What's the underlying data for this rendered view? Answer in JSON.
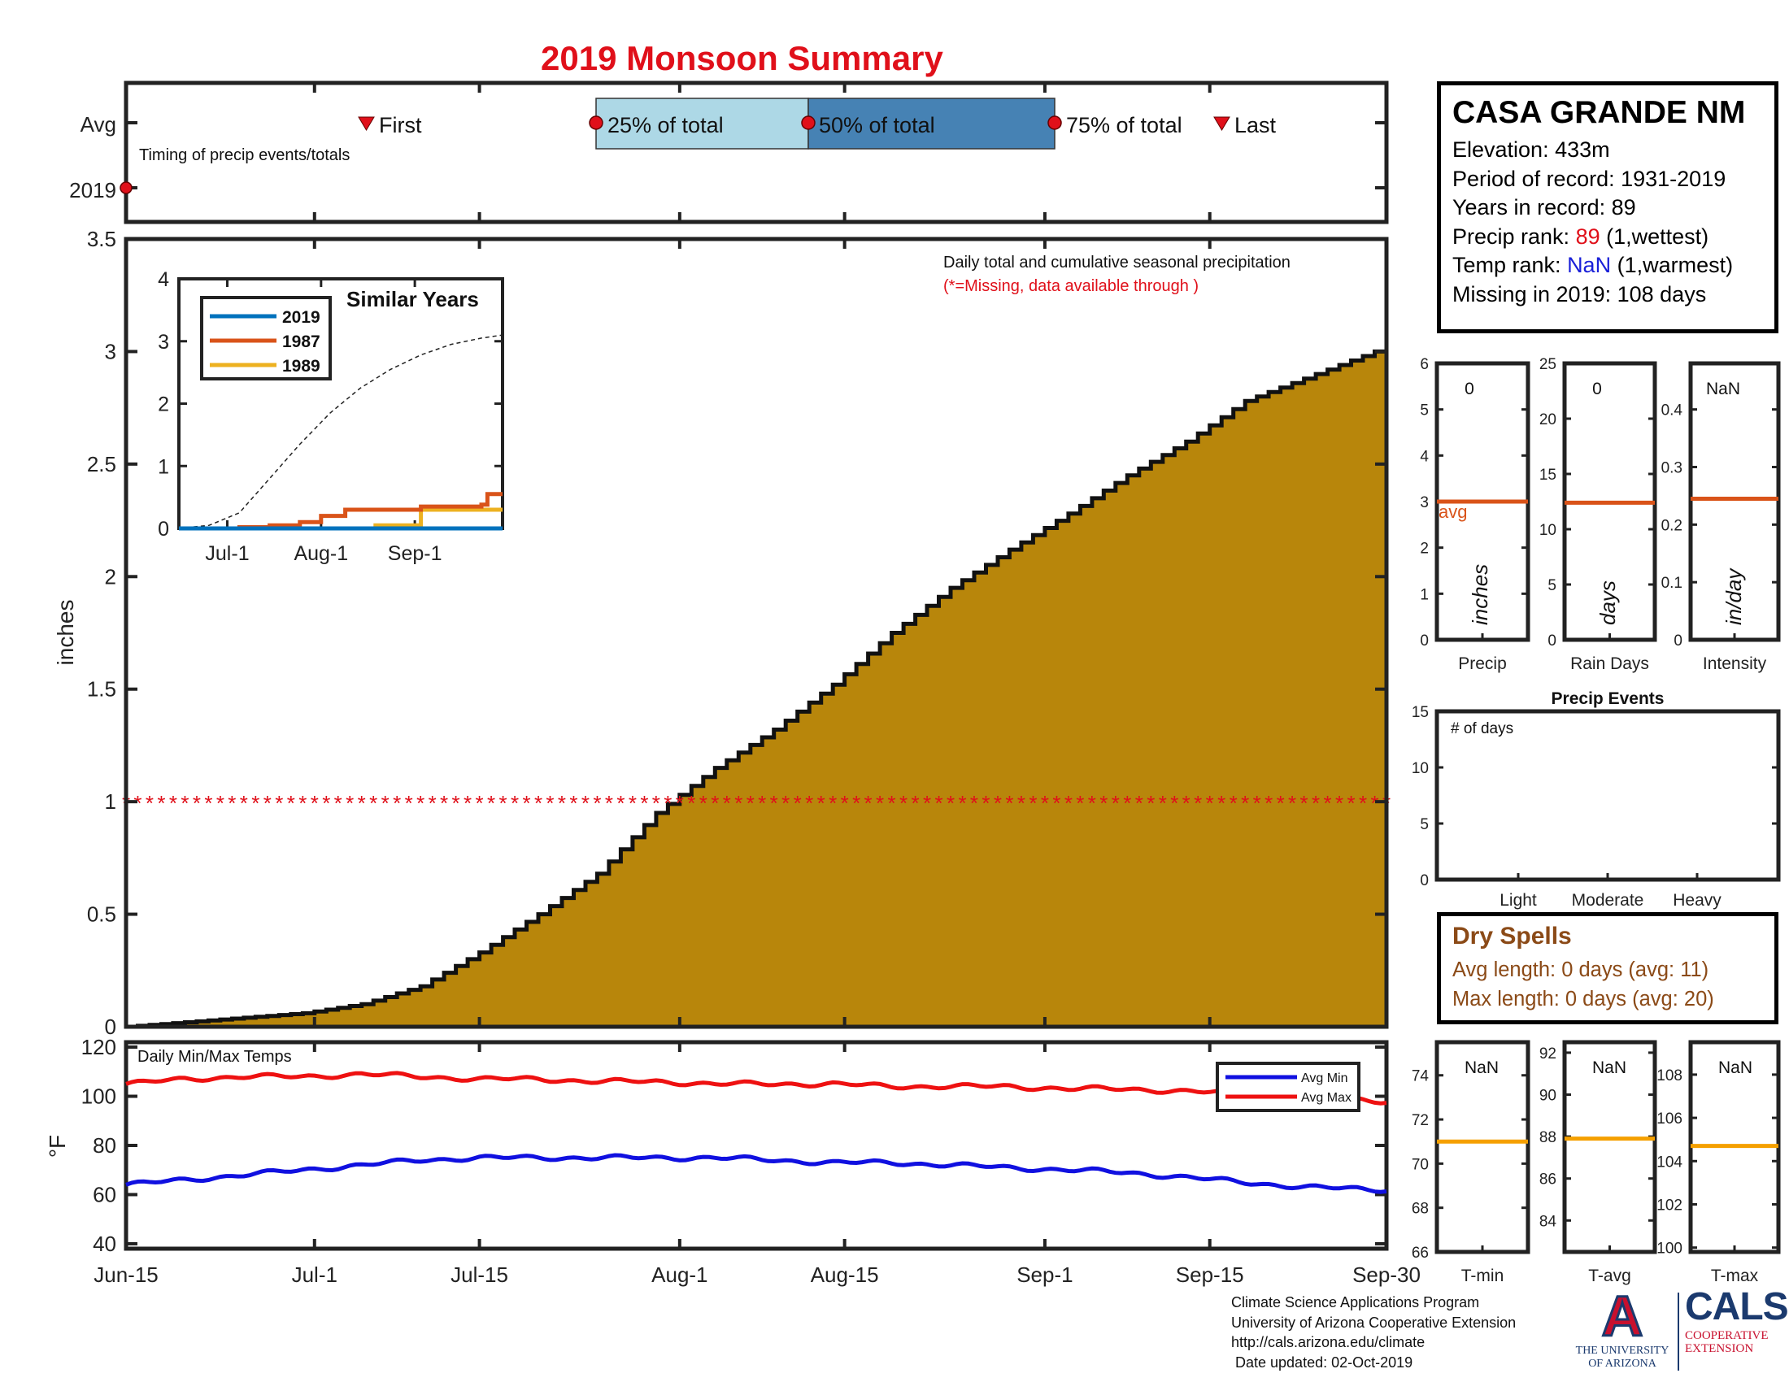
{
  "title": "2019 Monsoon Summary",
  "station": {
    "name": "CASA GRANDE NM",
    "elevation_label": "Elevation: 433m",
    "period_label": "Period of record: 1931-2019",
    "years_label": "Years in record: 89",
    "precip_rank_prefix": "Precip rank: ",
    "precip_rank_value": "89",
    "precip_rank_suffix": " (1,wettest)",
    "temp_rank_prefix": "Temp rank: ",
    "temp_rank_value": "NaN",
    "temp_rank_suffix": " (1,warmest)",
    "missing_label": "Missing in 2019: 108 days"
  },
  "timing": {
    "avg_label": "Avg",
    "year_label": "2019",
    "caption": "Timing of precip events/totals",
    "first": "First",
    "q25": "25% of total",
    "q50": "50% of total",
    "q75": "75% of total",
    "last": "Last"
  },
  "chart_data": {
    "type": "area",
    "title": "Daily total and cumulative seasonal precipitation",
    "subtitle": "(*=Missing, data available through )",
    "ylabel": "inches",
    "ylim": [
      0,
      3.5
    ],
    "yticks": [
      "0",
      "0.5",
      "1",
      "1.5",
      "2",
      "2.5",
      "3",
      "3.5"
    ],
    "xticks": [
      "Jun-15",
      "Jul-1",
      "Jul-15",
      "Aug-1",
      "Aug-15",
      "Sep-1",
      "Sep-15",
      "Sep-30"
    ],
    "xtick_days": [
      0,
      16,
      30,
      47,
      61,
      78,
      92,
      107
    ],
    "series_avg_cumulative": {
      "name": "Average cumulative precipitation",
      "day": [
        0,
        5,
        10,
        15,
        20,
        25,
        30,
        35,
        40,
        45,
        50,
        55,
        60,
        65,
        70,
        75,
        80,
        85,
        90,
        95,
        100,
        107
      ],
      "values": [
        0,
        0.02,
        0.04,
        0.06,
        0.1,
        0.18,
        0.33,
        0.5,
        0.68,
        0.95,
        1.15,
        1.32,
        1.52,
        1.75,
        1.95,
        2.12,
        2.28,
        2.45,
        2.6,
        2.78,
        2.88,
        3.02
      ]
    },
    "missing_marker_value": 1,
    "missing_label": "*",
    "inset": {
      "title": "Similar Years",
      "ylim": [
        0,
        4
      ],
      "yticks": [
        "0",
        "1",
        "2",
        "3",
        "4"
      ],
      "xticks": [
        "Jul-1",
        "Aug-1",
        "Sep-1"
      ],
      "xtick_days": [
        16,
        47,
        78
      ],
      "series": [
        {
          "name": "2019",
          "color": "#0072bd",
          "day": [
            0,
            107
          ],
          "values": [
            0,
            0
          ]
        },
        {
          "name": "1987",
          "color": "#d95319",
          "day": [
            0,
            20,
            30,
            40,
            47,
            55,
            60,
            80,
            100,
            102,
            107
          ],
          "values": [
            0,
            0.02,
            0.05,
            0.1,
            0.2,
            0.3,
            0.3,
            0.35,
            0.38,
            0.55,
            0.55
          ]
        },
        {
          "name": "1989",
          "color": "#edb120",
          "day": [
            0,
            60,
            65,
            80,
            107
          ],
          "values": [
            0,
            0,
            0.05,
            0.3,
            0.3
          ]
        }
      ],
      "avg_dashed": {
        "day": [
          0,
          10,
          20,
          30,
          40,
          50,
          60,
          70,
          80,
          90,
          100,
          107
        ],
        "values": [
          0,
          0.05,
          0.25,
          0.8,
          1.35,
          1.85,
          2.25,
          2.55,
          2.78,
          2.95,
          3.05,
          3.1
        ]
      }
    },
    "small_panels": [
      {
        "label": "Precip",
        "unit": "inches",
        "value_text": "0",
        "ylim": [
          0,
          6
        ],
        "yticks": [
          "0",
          "1",
          "2",
          "3",
          "4",
          "5",
          "6"
        ],
        "avg": 3.0,
        "avg_label": "avg",
        "avg_color": "#d95319"
      },
      {
        "label": "Rain Days",
        "unit": "days",
        "value_text": "0",
        "ylim": [
          0,
          25
        ],
        "yticks": [
          "0",
          "5",
          "10",
          "15",
          "20",
          "25"
        ],
        "avg": 12.4,
        "avg_color": "#d95319"
      },
      {
        "label": "Intensity",
        "unit": "in/day",
        "value_text": "NaN",
        "ylim": [
          0,
          0.48
        ],
        "yticks": [
          "0",
          "0.1",
          "0.2",
          "0.3",
          "0.4"
        ],
        "avg": 0.245,
        "avg_color": "#d95319"
      }
    ],
    "precip_events": {
      "title": "Precip Events",
      "ylabel": "# of days",
      "ylim": [
        0,
        15
      ],
      "yticks": [
        "0",
        "5",
        "10",
        "15"
      ],
      "categories": [
        "Light",
        "Moderate",
        "Heavy"
      ],
      "values": [
        0,
        0,
        0
      ]
    },
    "temps": {
      "title": "Daily Min/Max Temps",
      "ylabel": "°F",
      "ylim": [
        38,
        122
      ],
      "yticks": [
        "40",
        "60",
        "80",
        "100",
        "120"
      ],
      "legend": [
        "Avg Min",
        "Avg Max"
      ],
      "avg_max": {
        "color": "#ee1111",
        "day": [
          0,
          5,
          10,
          15,
          20,
          25,
          30,
          35,
          40,
          45,
          50,
          55,
          60,
          65,
          70,
          75,
          80,
          85,
          90,
          95,
          100,
          107
        ],
        "values": [
          105,
          107,
          108,
          108,
          109,
          108,
          107,
          107,
          106,
          106,
          105,
          105,
          105,
          104,
          104,
          104,
          103,
          103,
          102,
          101,
          100,
          98
        ]
      },
      "avg_min": {
        "color": "#1010e0",
        "day": [
          0,
          5,
          10,
          15,
          20,
          25,
          30,
          35,
          40,
          45,
          50,
          55,
          60,
          65,
          70,
          75,
          80,
          85,
          90,
          95,
          100,
          107
        ],
        "values": [
          64,
          66,
          68,
          70,
          72,
          74,
          75,
          75,
          75,
          75,
          75,
          74,
          73,
          73,
          72,
          71,
          70,
          69,
          67,
          65,
          63,
          62
        ]
      }
    },
    "temp_panels": [
      {
        "label": "T-min",
        "value_text": "NaN",
        "ylim": [
          66,
          75.5
        ],
        "yticks": [
          "66",
          "68",
          "70",
          "72",
          "74"
        ],
        "avg": 71.0,
        "avg_color": "#f5a000"
      },
      {
        "label": "T-avg",
        "value_text": "NaN",
        "ylim": [
          82.5,
          92.5
        ],
        "yticks": [
          "84",
          "86",
          "88",
          "90",
          "92"
        ],
        "avg": 87.9,
        "avg_color": "#f5a000"
      },
      {
        "label": "T-max",
        "value_text": "NaN",
        "ylim": [
          99.8,
          109.5
        ],
        "yticks": [
          "100",
          "102",
          "104",
          "106",
          "108"
        ],
        "avg": 104.7,
        "avg_color": "#f5a000"
      }
    ]
  },
  "dry_spells": {
    "title": "Dry Spells",
    "avg_length": "Avg length: 0 days (avg: 11)",
    "max_length": "Max length: 0 days (avg: 20)"
  },
  "footer": {
    "line1": "Climate Science Applications Program",
    "line2": "University of Arizona Cooperative Extension",
    "line3": "http://cals.arizona.edu/climate",
    "line4": " Date updated: 02-Oct-2019"
  },
  "logos": {
    "ua_letter": "A",
    "ua_line1": "THE UNIVERSITY",
    "ua_line2": "OF ARIZONA",
    "cals": "CALS",
    "cals_line1": "COOPERATIVE",
    "cals_line2": "EXTENSION"
  }
}
